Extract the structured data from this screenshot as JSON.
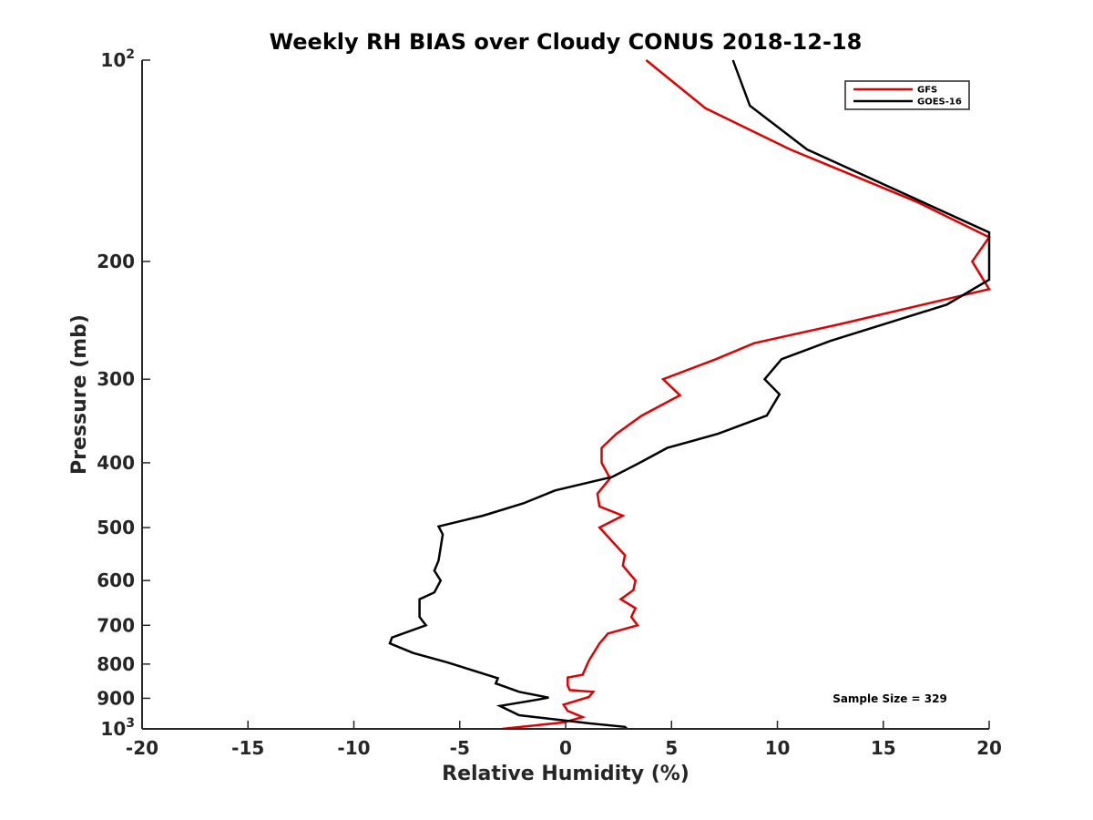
{
  "chart_data": {
    "type": "line",
    "title": "Weekly RH BIAS over Cloudy CONUS 2018-12-18",
    "xlabel": "Relative Humidity (%)",
    "ylabel": "Pressure (mb)",
    "xlim": [
      -20,
      20
    ],
    "ylim": [
      100,
      1000
    ],
    "y_scale": "log",
    "y_reversed": true,
    "x_ticks": [
      {
        "value": -20,
        "label": "-20"
      },
      {
        "value": -15,
        "label": "-15"
      },
      {
        "value": -10,
        "label": "-10"
      },
      {
        "value": -5,
        "label": "-5"
      },
      {
        "value": 0,
        "label": "0"
      },
      {
        "value": 5,
        "label": "5"
      },
      {
        "value": 10,
        "label": "10"
      },
      {
        "value": 15,
        "label": "15"
      },
      {
        "value": 20,
        "label": "20"
      }
    ],
    "y_ticks": [
      {
        "value": 100,
        "base": "10",
        "exp": "2"
      },
      {
        "value": 200,
        "base": "200",
        "exp": ""
      },
      {
        "value": 300,
        "base": "300",
        "exp": ""
      },
      {
        "value": 400,
        "base": "400",
        "exp": ""
      },
      {
        "value": 500,
        "base": "500",
        "exp": ""
      },
      {
        "value": 600,
        "base": "600",
        "exp": ""
      },
      {
        "value": 700,
        "base": "700",
        "exp": ""
      },
      {
        "value": 800,
        "base": "800",
        "exp": ""
      },
      {
        "value": 900,
        "base": "900",
        "exp": ""
      },
      {
        "value": 1000,
        "base": "10",
        "exp": "3"
      }
    ],
    "legend_position": "top-right",
    "grid": false,
    "annotation": "Sample Size = 329",
    "series": [
      {
        "name": "GFS",
        "color": "#e00000",
        "points": [
          [
            3.8,
            100
          ],
          [
            6.6,
            118
          ],
          [
            10.6,
            136
          ],
          [
            16.6,
            163
          ],
          [
            20.0,
            184
          ],
          [
            19.2,
            200
          ],
          [
            20.0,
            220
          ],
          [
            13.0,
            248
          ],
          [
            8.9,
            265
          ],
          [
            7.1,
            280
          ],
          [
            4.6,
            300
          ],
          [
            5.4,
            317
          ],
          [
            3.6,
            340
          ],
          [
            2.4,
            362
          ],
          [
            1.7,
            380
          ],
          [
            1.7,
            400
          ],
          [
            2.1,
            422
          ],
          [
            1.5,
            445
          ],
          [
            1.6,
            465
          ],
          [
            2.7,
            480
          ],
          [
            1.6,
            500
          ],
          [
            2.8,
            550
          ],
          [
            2.7,
            570
          ],
          [
            3.3,
            600
          ],
          [
            3.2,
            620
          ],
          [
            2.6,
            640
          ],
          [
            3.3,
            660
          ],
          [
            3.1,
            680
          ],
          [
            3.4,
            700
          ],
          [
            2.0,
            720
          ],
          [
            1.6,
            745
          ],
          [
            1.1,
            790
          ],
          [
            0.8,
            830
          ],
          [
            0.1,
            838
          ],
          [
            0.1,
            862
          ],
          [
            0.2,
            875
          ],
          [
            1.3,
            880
          ],
          [
            1.1,
            896
          ],
          [
            -0.1,
            920
          ],
          [
            0.1,
            940
          ],
          [
            0.8,
            960
          ],
          [
            -0.1,
            978
          ],
          [
            -3.0,
            1000
          ]
        ]
      },
      {
        "name": "GOES-16",
        "color": "#000000",
        "points": [
          [
            7.9,
            100
          ],
          [
            8.7,
            117
          ],
          [
            11.4,
            136
          ],
          [
            20.0,
            181
          ],
          [
            20.0,
            213
          ],
          [
            18.0,
            232
          ],
          [
            12.5,
            263
          ],
          [
            10.2,
            280
          ],
          [
            9.4,
            300
          ],
          [
            10.1,
            316
          ],
          [
            9.5,
            340
          ],
          [
            7.2,
            362
          ],
          [
            4.8,
            380
          ],
          [
            3.5,
            400
          ],
          [
            2.2,
            420
          ],
          [
            -0.5,
            440
          ],
          [
            -2.0,
            460
          ],
          [
            -3.9,
            480
          ],
          [
            -6.0,
            498
          ],
          [
            -5.8,
            512
          ],
          [
            -6.0,
            560
          ],
          [
            -6.2,
            580
          ],
          [
            -5.9,
            600
          ],
          [
            -6.2,
            625
          ],
          [
            -6.9,
            640
          ],
          [
            -6.9,
            680
          ],
          [
            -6.6,
            700
          ],
          [
            -8.2,
            730
          ],
          [
            -8.3,
            745
          ],
          [
            -7.2,
            770
          ],
          [
            -5.6,
            795
          ],
          [
            -3.2,
            840
          ],
          [
            -3.3,
            855
          ],
          [
            -2.2,
            880
          ],
          [
            -0.8,
            898
          ],
          [
            -1.4,
            905
          ],
          [
            -3.1,
            924
          ],
          [
            -2.2,
            954
          ],
          [
            1.0,
            980
          ],
          [
            2.8,
            993
          ],
          [
            2.9,
            1000
          ]
        ]
      }
    ]
  }
}
